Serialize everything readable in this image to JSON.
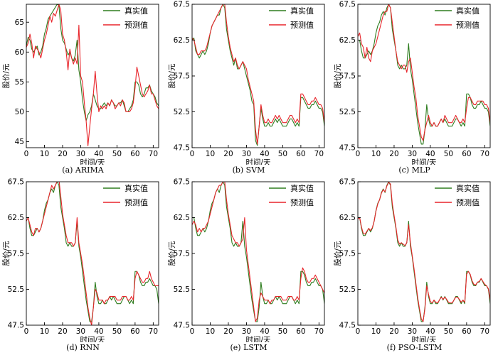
{
  "figure": {
    "domain": "time-series comparison grid"
  },
  "style": {
    "actual_color": "#2e7d1f",
    "predicted_color": "#e8252b",
    "axis_color": "#000000"
  },
  "chart_data": [
    {
      "type": "line",
      "caption": "(a) ARIMA",
      "xlabel": "时间/天",
      "ylabel": "股价/元",
      "xlim": [
        0,
        73
      ],
      "ylim": [
        44,
        68
      ],
      "yticks": [
        45,
        50,
        55,
        60,
        65
      ],
      "xticks": [
        0,
        10,
        20,
        30,
        40,
        50,
        60,
        70
      ],
      "legend": {
        "position": "top-right",
        "entries": [
          "真实值",
          "预测值"
        ]
      },
      "x_range": [
        0,
        73
      ],
      "series": [
        {
          "name": "真实值",
          "values": [
            61,
            62.5,
            62,
            60.5,
            60,
            60.5,
            61,
            59.5,
            60,
            61,
            63,
            64,
            65.5,
            66,
            66.5,
            67,
            67.5,
            68,
            67.8,
            64,
            62,
            61.5,
            60.5,
            59.5,
            60,
            59,
            58.5,
            59.5,
            62,
            57,
            55,
            52,
            50,
            48.5,
            49.5,
            50,
            51,
            53,
            52,
            51,
            50.5,
            50.5,
            51,
            51.5,
            51,
            51.5,
            51,
            52,
            51.5,
            51,
            51,
            51.5,
            51.5,
            52,
            51,
            50,
            50,
            50.5,
            51,
            52,
            55,
            55,
            54.5,
            53,
            52.5,
            53,
            54,
            54,
            54.5,
            53.5,
            53,
            52.5,
            51.5,
            51
          ]
        },
        {
          "name": "预测值",
          "values": [
            60.8,
            61.5,
            63,
            61.5,
            59,
            61,
            60.5,
            60,
            59,
            60.5,
            62,
            63,
            64.5,
            66,
            65,
            66.5,
            66,
            67,
            68,
            67,
            63,
            62,
            60,
            57,
            60.5,
            59,
            58,
            59,
            58,
            64.5,
            56,
            55,
            51.5,
            48.5,
            44.3,
            47.5,
            50.5,
            53,
            56.8,
            53,
            50,
            51,
            50.5,
            51,
            50.5,
            51.5,
            51,
            52,
            51.5,
            50.5,
            51,
            51.5,
            51,
            52,
            51.5,
            50,
            50,
            50,
            50.5,
            51.5,
            54,
            57.5,
            56,
            54.5,
            53,
            52.5,
            53,
            53.5,
            54.5,
            53,
            53,
            52,
            51,
            50.5
          ]
        }
      ]
    },
    {
      "type": "line",
      "caption": "(b) SVM",
      "xlabel": "时间/天",
      "ylabel": "股价/元",
      "xlim": [
        0,
        73
      ],
      "ylim": [
        47.5,
        67.5
      ],
      "yticks": [
        47.5,
        52.5,
        57.5,
        62.5,
        67.5
      ],
      "xticks": [
        0,
        10,
        20,
        30,
        40,
        50,
        60,
        70
      ],
      "legend": {
        "position": "top-right",
        "entries": [
          "真实值",
          "预测值"
        ]
      },
      "x_range": [
        0,
        73
      ],
      "series": [
        {
          "name": "真实值",
          "values": [
            62.5,
            62.8,
            61,
            60.5,
            60,
            60.5,
            61,
            60.5,
            61,
            62,
            63.5,
            64.5,
            65,
            65.5,
            66,
            66,
            67,
            67.5,
            67,
            64,
            62.5,
            61,
            60,
            59,
            60,
            58.5,
            58.5,
            59,
            59.5,
            58.5,
            57.5,
            56.5,
            55.5,
            54,
            53.5,
            48.5,
            47.8,
            50.5,
            53,
            51.5,
            50.5,
            50.5,
            51,
            50.5,
            50.5,
            51,
            51.5,
            51,
            51.5,
            51,
            50.5,
            50.5,
            50.5,
            51,
            51.5,
            51.5,
            51,
            50.5,
            51,
            50.5,
            54.5,
            54.5,
            54,
            53.5,
            53,
            53,
            53.5,
            53.5,
            54,
            53.5,
            53,
            53,
            52.5,
            50.5
          ]
        },
        {
          "name": "预测值",
          "values": [
            62.8,
            62.5,
            61.5,
            60.5,
            60.5,
            61,
            61,
            61,
            61.5,
            62.5,
            63.5,
            64.5,
            65,
            65.5,
            66,
            66.5,
            67,
            67.5,
            67.5,
            65,
            63,
            61.5,
            60.5,
            59.5,
            60,
            59,
            58.5,
            59,
            59.5,
            59,
            58.5,
            57,
            56,
            55,
            54,
            50,
            48,
            50.5,
            53.5,
            52,
            51,
            51,
            51.5,
            51,
            51,
            51.5,
            52,
            51.5,
            52,
            51.5,
            51,
            51,
            51,
            51.5,
            52,
            52,
            51.5,
            51,
            51.5,
            51,
            55,
            55,
            54.5,
            54,
            53.5,
            53.5,
            54,
            54,
            54.5,
            54,
            53.5,
            53.5,
            53,
            51
          ]
        }
      ]
    },
    {
      "type": "line",
      "caption": "(c) MLP",
      "xlabel": "时间/天",
      "ylabel": "股价/元",
      "xlim": [
        0,
        73
      ],
      "ylim": [
        47.5,
        67.5
      ],
      "yticks": [
        47.5,
        52.5,
        57.5,
        62.5,
        67.5
      ],
      "xticks": [
        0,
        10,
        20,
        30,
        40,
        50,
        60,
        70
      ],
      "legend": {
        "position": "top-right",
        "entries": [
          "真实值",
          "预测值"
        ]
      },
      "x_range": [
        0,
        73
      ],
      "series": [
        {
          "name": "真实值",
          "values": [
            62.5,
            62.5,
            61,
            60,
            60,
            60.5,
            61,
            60.5,
            61,
            62,
            63.5,
            64.5,
            65,
            66,
            66.5,
            66,
            67,
            67.5,
            67,
            64,
            62.5,
            61,
            59,
            58.5,
            59,
            58.5,
            58.5,
            59,
            62,
            58.5,
            57,
            55,
            53,
            51,
            49.5,
            48,
            48,
            50,
            53.5,
            51.5,
            50.5,
            50.5,
            51,
            50.5,
            50.5,
            51,
            51.5,
            51,
            51.5,
            51,
            50.5,
            50.5,
            50.5,
            51,
            51.5,
            51.5,
            51,
            50.5,
            51,
            50.5,
            55,
            55,
            54.5,
            53.5,
            53,
            53,
            53.5,
            53.5,
            54,
            53.5,
            53,
            53,
            52.5,
            50.5
          ]
        },
        {
          "name": "预测值",
          "values": [
            63,
            63.5,
            62,
            61.5,
            60,
            61.5,
            60,
            59.5,
            61,
            61.5,
            62,
            63,
            64,
            65,
            66,
            66.5,
            66.5,
            67.5,
            67,
            65,
            63,
            61,
            59.5,
            59,
            58.5,
            59,
            59,
            58,
            59.5,
            60,
            58,
            56,
            54.5,
            52,
            50.5,
            49,
            48.5,
            50,
            51,
            52,
            51,
            50.5,
            51,
            50.5,
            50.5,
            51,
            51.5,
            51,
            52,
            51.5,
            51,
            51,
            51,
            51.5,
            52,
            51.5,
            51,
            51,
            51.5,
            51,
            53,
            54.5,
            54.5,
            54,
            53.5,
            53.5,
            54,
            54,
            54,
            54,
            53.5,
            53.5,
            53,
            51
          ]
        }
      ]
    },
    {
      "type": "line",
      "caption": "(d) RNN",
      "xlabel": "时间/天",
      "ylabel": "股价/元",
      "xlim": [
        0,
        73
      ],
      "ylim": [
        47.5,
        67.5
      ],
      "yticks": [
        47.5,
        52.5,
        57.5,
        62.5,
        67.5
      ],
      "xticks": [
        0,
        10,
        20,
        30,
        40,
        50,
        60,
        70
      ],
      "legend": {
        "position": "top-right",
        "entries": [
          "真实值",
          "预测值"
        ]
      },
      "x_range": [
        0,
        73
      ],
      "series": [
        {
          "name": "真实值",
          "values": [
            62.5,
            62.5,
            61,
            60,
            60,
            60.5,
            61,
            60.5,
            61,
            62,
            63.5,
            64.5,
            65,
            66,
            66.5,
            66,
            67,
            67.5,
            67,
            64,
            62.5,
            61,
            59,
            58.5,
            59,
            58.5,
            58.5,
            59,
            62,
            58.5,
            57,
            55,
            53,
            51,
            49.5,
            48,
            48,
            50,
            53.5,
            51.5,
            50.5,
            50.5,
            51,
            50.5,
            50.5,
            51,
            51.5,
            51,
            51.5,
            51,
            50.5,
            50.5,
            50.5,
            51,
            51.5,
            51.5,
            51,
            50.5,
            51,
            50.5,
            55,
            55,
            54.5,
            53.5,
            53,
            53,
            53.5,
            53.5,
            54,
            53.5,
            53,
            53,
            52.5,
            50.5
          ]
        },
        {
          "name": "预测值",
          "values": [
            62,
            62.5,
            61.5,
            60.5,
            60,
            61,
            61,
            60.5,
            61,
            62,
            63,
            64,
            65,
            66,
            67,
            66.5,
            67,
            67.5,
            67.8,
            65.5,
            63,
            61.5,
            60,
            59,
            59,
            59,
            58.5,
            59,
            62.5,
            59,
            57.5,
            56,
            54,
            52,
            50,
            48.5,
            47.5,
            50,
            52.5,
            52,
            51,
            51,
            51,
            50.5,
            51,
            51,
            51.5,
            51.5,
            51.5,
            51.5,
            51,
            51,
            51,
            51.5,
            51.5,
            51.5,
            51,
            51,
            51.5,
            51,
            54,
            55,
            54.5,
            54,
            53.5,
            53.5,
            54,
            54,
            55,
            54,
            53.5,
            53,
            53,
            53
          ]
        }
      ]
    },
    {
      "type": "line",
      "caption": "(e) LSTM",
      "xlabel": "时间/天",
      "ylabel": "股价/元",
      "xlim": [
        0,
        73
      ],
      "ylim": [
        47.5,
        67.5
      ],
      "yticks": [
        47.5,
        52.5,
        57.5,
        62.5,
        67.5
      ],
      "xticks": [
        0,
        10,
        20,
        30,
        40,
        50,
        60,
        70
      ],
      "legend": {
        "position": "top-right",
        "entries": [
          "真实值",
          "预测值"
        ]
      },
      "x_range": [
        0,
        73
      ],
      "series": [
        {
          "name": "真实值",
          "values": [
            62.5,
            62.5,
            61,
            60,
            60,
            60.5,
            61,
            60.5,
            61,
            62,
            63.5,
            64.5,
            65,
            66,
            66.5,
            66,
            67,
            67.5,
            67,
            64,
            62.5,
            61,
            59,
            58.5,
            59,
            58.5,
            58.5,
            59,
            62,
            58.5,
            57,
            55,
            53,
            51,
            49.5,
            48,
            48,
            50,
            53.5,
            51.5,
            50.5,
            50.5,
            51,
            50.5,
            50.5,
            51,
            51.5,
            51,
            51.5,
            51,
            50.5,
            50.5,
            50.5,
            51,
            51.5,
            51.5,
            51,
            50.5,
            51,
            50.5,
            55,
            55,
            54.5,
            53.5,
            53,
            53,
            53.5,
            53.5,
            54,
            53.5,
            53,
            53,
            52.5,
            50.5
          ]
        },
        {
          "name": "预测值",
          "values": [
            61.5,
            62,
            61.5,
            60.5,
            61,
            60.5,
            61,
            61,
            61.5,
            62,
            63,
            64,
            65,
            66,
            66.5,
            67,
            67,
            67.5,
            67.5,
            65,
            63,
            61.5,
            60,
            59.5,
            59,
            59,
            58.5,
            59,
            59.5,
            62.5,
            58,
            56,
            54,
            52,
            50,
            48,
            48.5,
            51,
            52,
            51.5,
            51,
            51,
            51,
            50.5,
            51,
            51,
            51.5,
            51.5,
            51.5,
            51.5,
            51,
            51,
            51,
            51.5,
            51.5,
            51.5,
            51,
            51,
            51.5,
            51,
            54,
            55.5,
            55,
            54,
            53.5,
            53.5,
            54,
            54,
            54.5,
            54,
            53.5,
            53,
            52.5,
            52
          ]
        }
      ]
    },
    {
      "type": "line",
      "caption": "(f) PSO-LSTM",
      "xlabel": "时间/天",
      "ylabel": "股价/元",
      "xlim": [
        0,
        73
      ],
      "ylim": [
        47.5,
        67.5
      ],
      "yticks": [
        47.5,
        52.5,
        57.5,
        62.5,
        67.5
      ],
      "xticks": [
        0,
        10,
        20,
        30,
        40,
        50,
        60,
        70
      ],
      "legend": {
        "position": "top-right",
        "entries": [
          "真实值",
          "预测值"
        ]
      },
      "x_range": [
        0,
        73
      ],
      "series": [
        {
          "name": "真实值",
          "values": [
            62.5,
            62.5,
            61,
            60,
            60,
            60.5,
            61,
            60.5,
            61,
            62,
            63.5,
            64.5,
            65,
            66,
            66.5,
            66,
            67,
            67.5,
            67,
            64,
            62.5,
            61,
            59,
            58.5,
            59,
            58.5,
            58.5,
            59,
            62,
            58.5,
            57,
            55,
            53,
            51,
            49.5,
            48,
            48,
            50,
            53.5,
            51.5,
            50.5,
            50.5,
            51,
            50.5,
            50.5,
            51,
            51.5,
            51,
            51.5,
            51,
            50.5,
            50.5,
            50.5,
            51,
            51.5,
            51.5,
            51,
            50.5,
            51,
            50.5,
            55,
            55,
            54.5,
            53.5,
            53,
            53,
            53.5,
            53.5,
            54,
            53.5,
            53,
            53,
            52.5,
            50.5
          ]
        },
        {
          "name": "预测值",
          "values": [
            62.3,
            62.5,
            61.2,
            60.3,
            60.2,
            60.6,
            61,
            60.7,
            61.1,
            62,
            63.4,
            64.4,
            65,
            65.9,
            66.4,
            66.1,
            66.9,
            67.4,
            67.2,
            64.5,
            62.8,
            61.2,
            59.4,
            58.8,
            59,
            58.8,
            58.6,
            59,
            61.5,
            59,
            57.2,
            55.4,
            53.4,
            51.4,
            49.8,
            48.4,
            48,
            49.8,
            53,
            51.8,
            50.8,
            50.6,
            51,
            50.7,
            50.6,
            51,
            51.4,
            51.1,
            51.4,
            51.1,
            50.7,
            50.6,
            50.6,
            51,
            51.4,
            51.4,
            51.1,
            50.7,
            51,
            50.7,
            54.6,
            55,
            54.6,
            53.7,
            53.2,
            53.1,
            53.5,
            53.6,
            54,
            53.6,
            53.2,
            53,
            52.6,
            51
          ]
        }
      ]
    }
  ]
}
